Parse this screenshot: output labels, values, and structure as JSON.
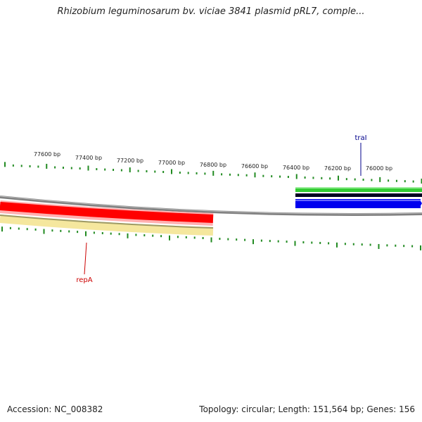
{
  "title": "Rhizobium leguminosarum bv. viciae 3841 plasmid pRL7, comple...",
  "footer": {
    "accession": "Accession: NC_008382",
    "info": "Topology: circular; Length: 151,564 bp; Genes: 156"
  },
  "scale_labels": [
    "77600 bp",
    "77400 bp",
    "77200 bp",
    "77000 bp",
    "76800 bp",
    "76600 bp",
    "76400 bp",
    "76200 bp",
    "76000 bp"
  ],
  "genes": [
    {
      "name": "traI",
      "color": "#00008b"
    },
    {
      "name": "repA",
      "color": "#cc0000"
    }
  ],
  "colors": {
    "tick": "#228b22",
    "backbone": "#808080",
    "gene_red": "#ff0000",
    "gene_yellow": "#f5e79e",
    "gene_green": "#33cc33",
    "gene_blue": "#0000ee",
    "gene_black": "#000022"
  }
}
